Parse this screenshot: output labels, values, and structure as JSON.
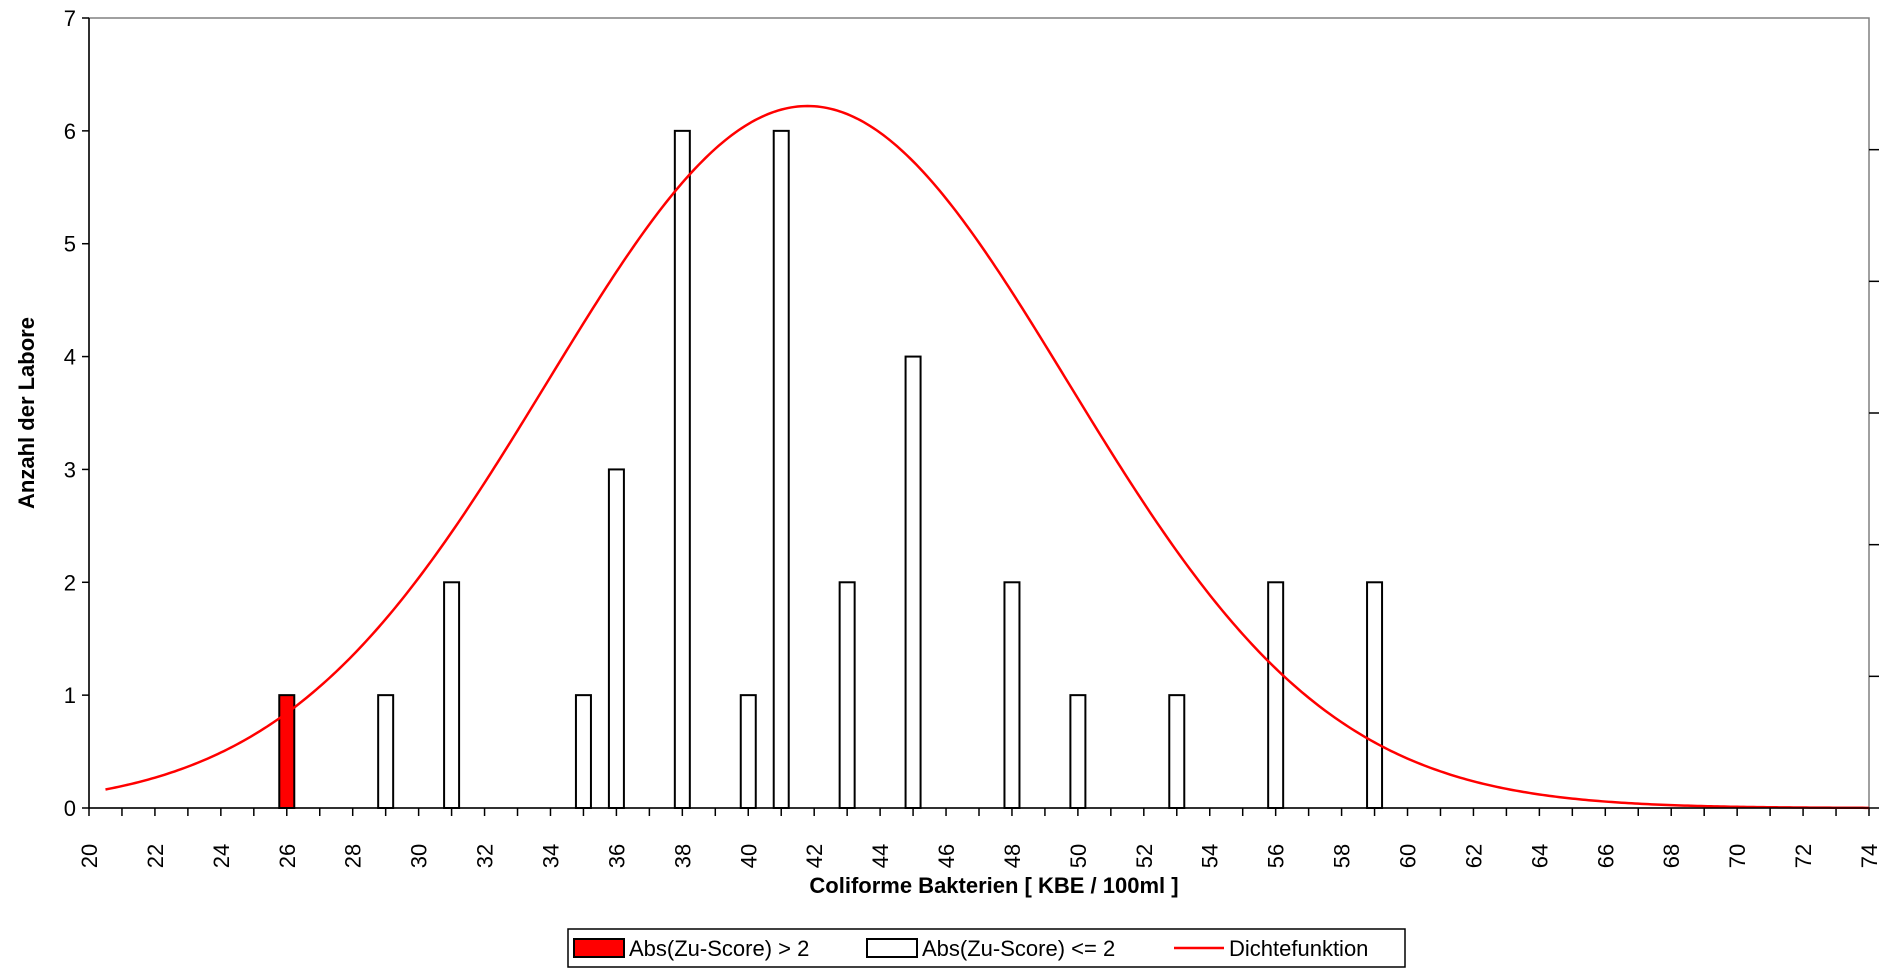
{
  "chart_data": {
    "type": "bar",
    "xlabel": "Coliforme Bakterien [ KBE / 100ml ]",
    "ylabel": "Anzahl der Labore",
    "xlim": [
      20,
      74
    ],
    "ylim": [
      0,
      7
    ],
    "x_ticks": [
      20,
      22,
      24,
      26,
      28,
      30,
      32,
      34,
      36,
      38,
      40,
      42,
      44,
      46,
      48,
      50,
      52,
      54,
      56,
      58,
      60,
      62,
      64,
      66,
      68,
      70,
      72,
      74
    ],
    "y_ticks": [
      0,
      1,
      2,
      3,
      4,
      5,
      6,
      7
    ],
    "grid": false,
    "legend_position": "bottom",
    "series": [
      {
        "name": "Abs(Zu-Score) > 2",
        "color": "#ff0000",
        "points": [
          {
            "x": 26,
            "y": 1
          }
        ]
      },
      {
        "name": "Abs(Zu-Score) <= 2",
        "color": "#ffffff",
        "points": [
          {
            "x": 29,
            "y": 1
          },
          {
            "x": 31,
            "y": 2
          },
          {
            "x": 35,
            "y": 1
          },
          {
            "x": 36,
            "y": 3
          },
          {
            "x": 38,
            "y": 6
          },
          {
            "x": 40,
            "y": 1
          },
          {
            "x": 41,
            "y": 6
          },
          {
            "x": 43,
            "y": 2
          },
          {
            "x": 45,
            "y": 4
          },
          {
            "x": 48,
            "y": 2
          },
          {
            "x": 50,
            "y": 1
          },
          {
            "x": 53,
            "y": 1
          },
          {
            "x": 56,
            "y": 2
          },
          {
            "x": 59,
            "y": 2
          }
        ]
      },
      {
        "name": "Dichtefunktion",
        "type": "line",
        "color": "#ff0000",
        "mean": 41.8,
        "sd": 7.9,
        "peak": 6.22,
        "x_range": [
          20.5,
          74
        ]
      }
    ]
  }
}
